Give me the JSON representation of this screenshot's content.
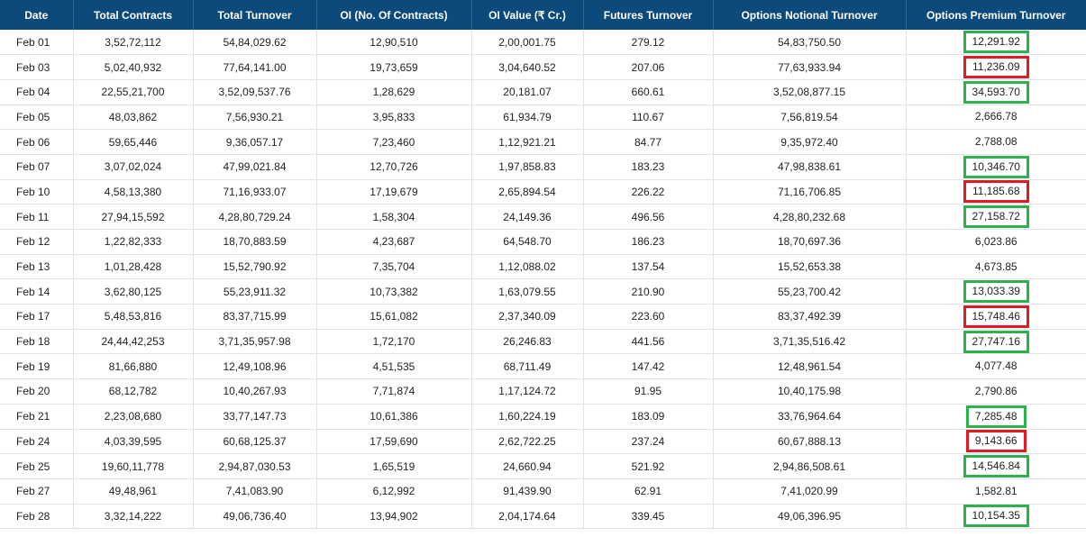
{
  "headers": [
    "Date",
    "Total Contracts",
    "Total Turnover",
    "OI (No. Of Contracts)",
    "OI Value (₹ Cr.)",
    "Futures Turnover",
    "Options Notional Turnover",
    "Options Premium Turnover"
  ],
  "rows": [
    [
      "Feb 01",
      "3,52,72,112",
      "54,84,029.62",
      "12,90,510",
      "2,00,001.75",
      "279.12",
      "54,83,750.50",
      "12,291.92"
    ],
    [
      "Feb 03",
      "5,02,40,932",
      "77,64,141.00",
      "19,73,659",
      "3,04,640.52",
      "207.06",
      "77,63,933.94",
      "11,236.09"
    ],
    [
      "Feb 04",
      "22,55,21,700",
      "3,52,09,537.76",
      "1,28,629",
      "20,181.07",
      "660.61",
      "3,52,08,877.15",
      "34,593.70"
    ],
    [
      "Feb 05",
      "48,03,862",
      "7,56,930.21",
      "3,95,833",
      "61,934.79",
      "110.67",
      "7,56,819.54",
      "2,666.78"
    ],
    [
      "Feb 06",
      "59,65,446",
      "9,36,057.17",
      "7,23,460",
      "1,12,921.21",
      "84.77",
      "9,35,972.40",
      "2,788.08"
    ],
    [
      "Feb 07",
      "3,07,02,024",
      "47,99,021.84",
      "12,70,726",
      "1,97,858.83",
      "183.23",
      "47,98,838.61",
      "10,346.70"
    ],
    [
      "Feb 10",
      "4,58,13,380",
      "71,16,933.07",
      "17,19,679",
      "2,65,894.54",
      "226.22",
      "71,16,706.85",
      "11,185.68"
    ],
    [
      "Feb 11",
      "27,94,15,592",
      "4,28,80,729.24",
      "1,58,304",
      "24,149.36",
      "496.56",
      "4,28,80,232.68",
      "27,158.72"
    ],
    [
      "Feb 12",
      "1,22,82,333",
      "18,70,883.59",
      "4,23,687",
      "64,548.70",
      "186.23",
      "18,70,697.36",
      "6,023.86"
    ],
    [
      "Feb 13",
      "1,01,28,428",
      "15,52,790.92",
      "7,35,704",
      "1,12,088.02",
      "137.54",
      "15,52,653.38",
      "4,673.85"
    ],
    [
      "Feb 14",
      "3,62,80,125",
      "55,23,911.32",
      "10,73,382",
      "1,63,079.55",
      "210.90",
      "55,23,700.42",
      "13,033.39"
    ],
    [
      "Feb 17",
      "5,48,53,816",
      "83,37,715.99",
      "15,61,082",
      "2,37,340.09",
      "223.60",
      "83,37,492.39",
      "15,748.46"
    ],
    [
      "Feb 18",
      "24,44,42,253",
      "3,71,35,957.98",
      "1,72,170",
      "26,246.83",
      "441.56",
      "3,71,35,516.42",
      "27,747.16"
    ],
    [
      "Feb 19",
      "81,66,880",
      "12,49,108.96",
      "4,51,535",
      "68,711.49",
      "147.42",
      "12,48,961.54",
      "4,077.48"
    ],
    [
      "Feb 20",
      "68,12,782",
      "10,40,267.93",
      "7,71,874",
      "1,17,124.72",
      "91.95",
      "10,40,175.98",
      "2,790.86"
    ],
    [
      "Feb 21",
      "2,23,08,680",
      "33,77,147.73",
      "10,61,386",
      "1,60,224.19",
      "183.09",
      "33,76,964.64",
      "7,285.48"
    ],
    [
      "Feb 24",
      "4,03,39,595",
      "60,68,125.37",
      "17,59,690",
      "2,62,722.25",
      "237.24",
      "60,67,888.13",
      "9,143.66"
    ],
    [
      "Feb 25",
      "19,60,11,778",
      "2,94,87,030.53",
      "1,65,519",
      "24,660.94",
      "521.92",
      "2,94,86,508.61",
      "14,546.84"
    ],
    [
      "Feb 27",
      "49,48,961",
      "7,41,083.90",
      "6,12,992",
      "91,439.90",
      "62.91",
      "7,41,020.99",
      "1,582.81"
    ],
    [
      "Feb 28",
      "3,32,14,222",
      "49,06,736.40",
      "13,94,902",
      "2,04,174.64",
      "339.45",
      "49,06,396.95",
      "10,154.35"
    ]
  ],
  "premium_highlights": [
    "green",
    "red",
    "green",
    "none",
    "none",
    "green",
    "red",
    "green",
    "none",
    "none",
    "green",
    "red",
    "green",
    "none",
    "none",
    "green",
    "red",
    "green",
    "none",
    "green"
  ],
  "colors": {
    "header_bg": "#0b4a7a",
    "highlight_green": "#2bb24c",
    "highlight_red": "#e01b24"
  }
}
